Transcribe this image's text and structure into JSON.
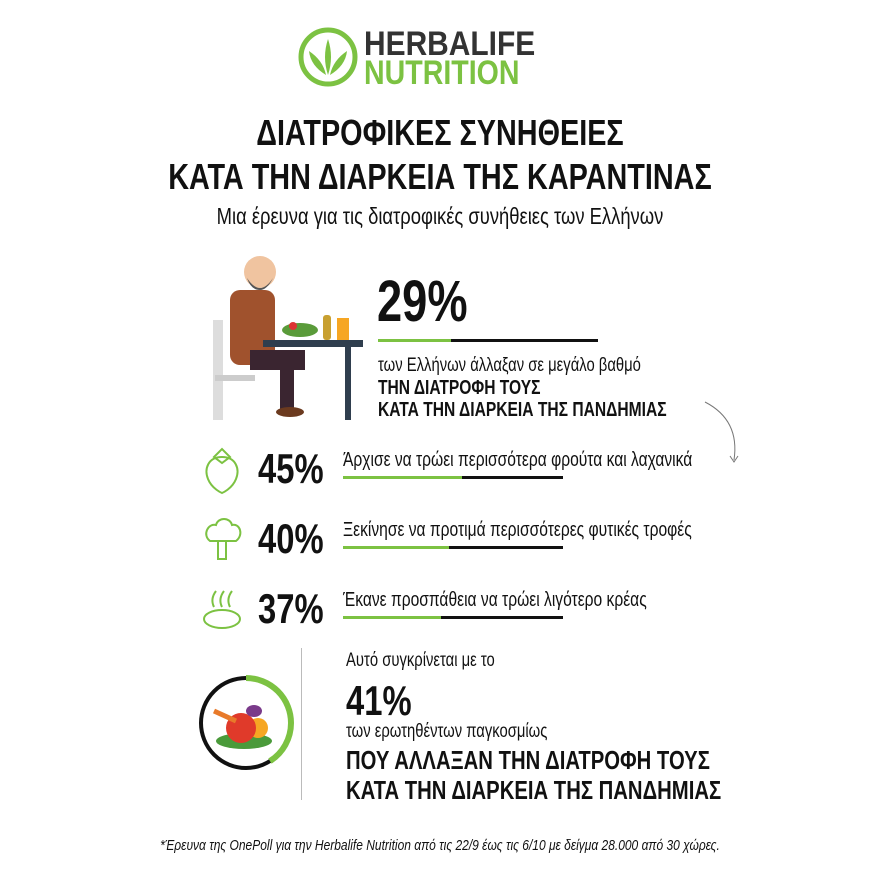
{
  "logo": {
    "line1": "HERBALIFE",
    "line2": "NUTRITION"
  },
  "title": {
    "line1": "ΔΙΑΤΡΟΦΙΚΕΣ ΣΥΝΗΘΕΙΕΣ",
    "line2": "ΚΑΤΑ ΤΗΝ ΔΙΑΡΚΕΙΑ ΤΗΣ ΚΑΡΑΝΤΙΝΑΣ",
    "subtitle": "Μια έρευνα για τις διατροφικές συνήθειες των Ελλήνων"
  },
  "colors": {
    "accent": "#7cc242",
    "text": "#111111"
  },
  "headline": {
    "percent": "29%",
    "value": 29,
    "line1": "των Ελλήνων άλλαξαν σε μεγάλο βαθμό",
    "line2": "ΤΗΝ ΔΙΑΤΡΟΦΗ ΤΟΥΣ",
    "line3": "ΚΑΤΑ ΤΗΝ ΔΙΑΡΚΕΙΑ ΤΗΣ ΠΑΝΔΗΜΙΑΣ"
  },
  "stats": [
    {
      "icon": "strawberry-icon",
      "percent": "45%",
      "value": 45,
      "text": "Άρχισε να τρώει περισσότερα φρούτα και λαχανικά"
    },
    {
      "icon": "broccoli-icon",
      "percent": "40%",
      "value": 40,
      "text": "Ξεκίνησε να προτιμά περισσότερες φυτικές τροφές"
    },
    {
      "icon": "steak-icon",
      "percent": "37%",
      "value": 37,
      "text": "Έκανε προσπάθεια να τρώει λιγότερο κρέας"
    }
  ],
  "global": {
    "intro": "Αυτό συγκρίνεται με το",
    "percent": "41%",
    "value": 41,
    "line1": "των ερωτηθέντων παγκοσμίως",
    "line2": "ΠΟΥ ΑΛΛΑΞΑΝ ΤΗΝ ΔΙΑΤΡΟΦΗ ΤΟΥΣ",
    "line3": "ΚΑΤΑ ΤΗΝ ΔΙΑΡΚΕΙΑ ΤΗΣ ΠΑΝΔΗΜΙΑΣ"
  },
  "footer": "*Έρευνα της OnePoll για την Herbalife Nutrition από τις 22/9 έως τις 6/10 με δείγμα 28.000 από 30 χώρες."
}
